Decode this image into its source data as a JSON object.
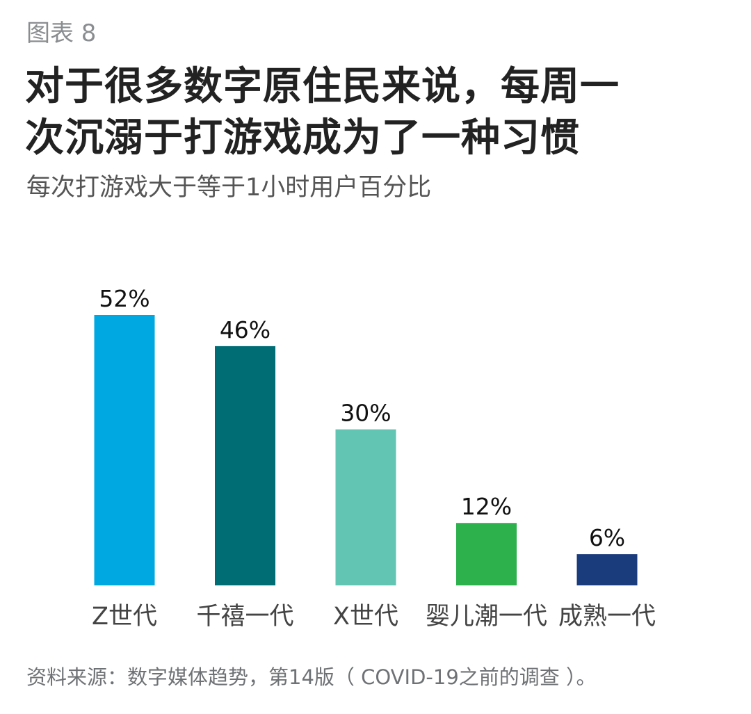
{
  "figure_label": "图表 8",
  "source": "资料来源：数字媒体趋势，第14版（ COVID-19之前的调查 ）。",
  "chart_data": {
    "type": "bar",
    "title": "对于很多数字原住民来说，每周一\n次沉溺于打游戏成为了一种习惯",
    "subtitle": "每次打游戏大于等于1小时用户百分比",
    "xlabel": "",
    "ylabel": "",
    "categories": [
      "Z世代",
      "千禧一代",
      "X世代",
      "婴儿潮一代",
      "成熟一代"
    ],
    "values": [
      52,
      46,
      30,
      12,
      6
    ],
    "value_labels": [
      "52%",
      "46%",
      "30%",
      "12%",
      "6%"
    ],
    "colors": [
      "#00a8e1",
      "#006d75",
      "#62c4b3",
      "#2db14d",
      "#1a3b7c"
    ],
    "ylim": [
      0,
      52
    ],
    "unit": "%",
    "grid": false,
    "legend": "none"
  }
}
